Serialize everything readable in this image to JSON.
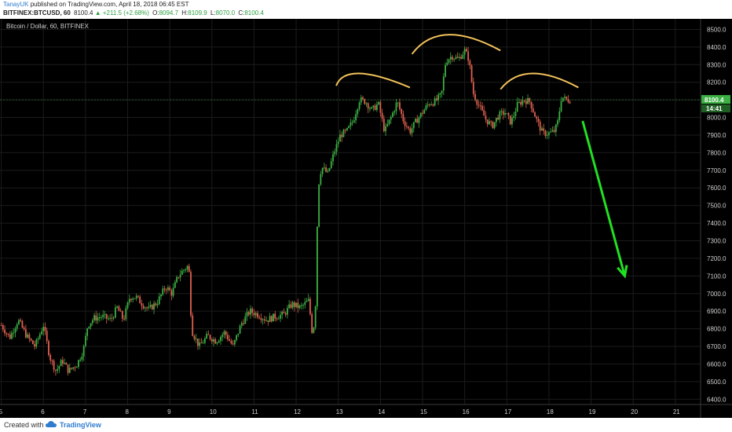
{
  "header": {
    "author": "TanayUK",
    "published_text": "published on TradingView.com, April 18, 2018 06:45 EST",
    "symbol_line": "BITFINEX:BTCUSD, 60",
    "last_value": "8100.4",
    "change": "▲ +211.5 (+2.68%)",
    "open_label": "O:",
    "open": "8094.7",
    "high_label": "H:",
    "high": "8109.9",
    "low_label": "L:",
    "low": "8070.0",
    "close_label": "C:",
    "close": "8100.4"
  },
  "footer": {
    "created_with": "Created with",
    "brand": "TradingView"
  },
  "colors": {
    "up": "#3cb043",
    "down": "#e0604f",
    "arc": "#f2c25a",
    "arrow": "#22e022",
    "price_box": "#3cb043"
  },
  "chart_data": {
    "type": "candlestick",
    "title": "Bitcoin / Dollar, 60, BITFINEX",
    "x_ticks": [
      "5",
      "6",
      "7",
      "8",
      "9",
      "10",
      "11",
      "12",
      "13",
      "14",
      "15",
      "16",
      "17",
      "18",
      "19",
      "20",
      "21"
    ],
    "y_ticks": [
      "8500.0",
      "8400.0",
      "8300.0",
      "8200.0",
      "8100.0",
      "8000.0",
      "7900.0",
      "7800.0",
      "7700.0",
      "7600.0",
      "7500.0",
      "7400.0",
      "7300.0",
      "7200.0",
      "7100.0",
      "7000.0",
      "6900.0",
      "6800.0",
      "6700.0",
      "6600.0",
      "6500.0",
      "6400.0"
    ],
    "ylim": [
      6370,
      8560
    ],
    "xlim": [
      4.97,
      21.6
    ],
    "last_price_label": "8100.4",
    "countdown_label": "14:41",
    "last_price": 8100.4,
    "price_path": [
      [
        5.0,
        6820
      ],
      [
        5.2,
        6750
      ],
      [
        5.4,
        6850
      ],
      [
        5.6,
        6760
      ],
      [
        5.8,
        6700
      ],
      [
        6.0,
        6820
      ],
      [
        6.15,
        6640
      ],
      [
        6.3,
        6560
      ],
      [
        6.45,
        6620
      ],
      [
        6.6,
        6560
      ],
      [
        6.8,
        6600
      ],
      [
        6.95,
        6680
      ],
      [
        7.05,
        6820
      ],
      [
        7.2,
        6860
      ],
      [
        7.4,
        6870
      ],
      [
        7.6,
        6850
      ],
      [
        7.75,
        6920
      ],
      [
        7.9,
        6850
      ],
      [
        8.05,
        6980
      ],
      [
        8.2,
        6980
      ],
      [
        8.35,
        6940
      ],
      [
        8.5,
        6910
      ],
      [
        8.7,
        6950
      ],
      [
        8.9,
        7040
      ],
      [
        9.05,
        7000
      ],
      [
        9.2,
        7100
      ],
      [
        9.35,
        7140
      ],
      [
        9.45,
        7160
      ],
      [
        9.52,
        6790
      ],
      [
        9.7,
        6700
      ],
      [
        9.9,
        6760
      ],
      [
        10.1,
        6730
      ],
      [
        10.3,
        6780
      ],
      [
        10.5,
        6700
      ],
      [
        10.7,
        6830
      ],
      [
        10.9,
        6900
      ],
      [
        11.1,
        6880
      ],
      [
        11.3,
        6850
      ],
      [
        11.5,
        6870
      ],
      [
        11.7,
        6880
      ],
      [
        11.9,
        6940
      ],
      [
        12.1,
        6920
      ],
      [
        12.3,
        6960
      ],
      [
        12.38,
        6780
      ],
      [
        12.45,
        6850
      ],
      [
        12.52,
        7600
      ],
      [
        12.6,
        7720
      ],
      [
        12.75,
        7680
      ],
      [
        12.9,
        7800
      ],
      [
        13.05,
        7900
      ],
      [
        13.2,
        7920
      ],
      [
        13.35,
        7980
      ],
      [
        13.5,
        8100
      ],
      [
        13.65,
        8090
      ],
      [
        13.8,
        8040
      ],
      [
        13.95,
        8080
      ],
      [
        14.1,
        7920
      ],
      [
        14.25,
        8000
      ],
      [
        14.4,
        8090
      ],
      [
        14.55,
        7980
      ],
      [
        14.7,
        7920
      ],
      [
        14.85,
        7980
      ],
      [
        15.0,
        8030
      ],
      [
        15.15,
        8080
      ],
      [
        15.3,
        8090
      ],
      [
        15.45,
        8130
      ],
      [
        15.55,
        8320
      ],
      [
        15.7,
        8350
      ],
      [
        15.85,
        8330
      ],
      [
        16.0,
        8380
      ],
      [
        16.1,
        8330
      ],
      [
        16.2,
        8140
      ],
      [
        16.35,
        8060
      ],
      [
        16.5,
        7990
      ],
      [
        16.65,
        7950
      ],
      [
        16.8,
        8010
      ],
      [
        16.95,
        8030
      ],
      [
        17.1,
        7970
      ],
      [
        17.25,
        8070
      ],
      [
        17.4,
        8100
      ],
      [
        17.55,
        8090
      ],
      [
        17.7,
        7990
      ],
      [
        17.85,
        7910
      ],
      [
        18.0,
        7910
      ],
      [
        18.12,
        7920
      ],
      [
        18.2,
        7960
      ],
      [
        18.3,
        8120
      ],
      [
        18.4,
        8100
      ],
      [
        18.5,
        8100
      ]
    ],
    "annotations": {
      "arcs": [
        {
          "from": [
            12.95,
            8180
          ],
          "peak": [
            13.5,
            8250
          ],
          "to": [
            14.7,
            8170
          ]
        },
        {
          "from": [
            14.75,
            8360
          ],
          "peak": [
            15.6,
            8470
          ],
          "to": [
            16.85,
            8380
          ]
        },
        {
          "from": [
            16.85,
            8160
          ],
          "peak": [
            17.6,
            8250
          ],
          "to": [
            18.7,
            8170
          ]
        }
      ],
      "arrow": {
        "from": [
          18.8,
          7980
        ],
        "to": [
          19.8,
          7100
        ]
      }
    }
  }
}
